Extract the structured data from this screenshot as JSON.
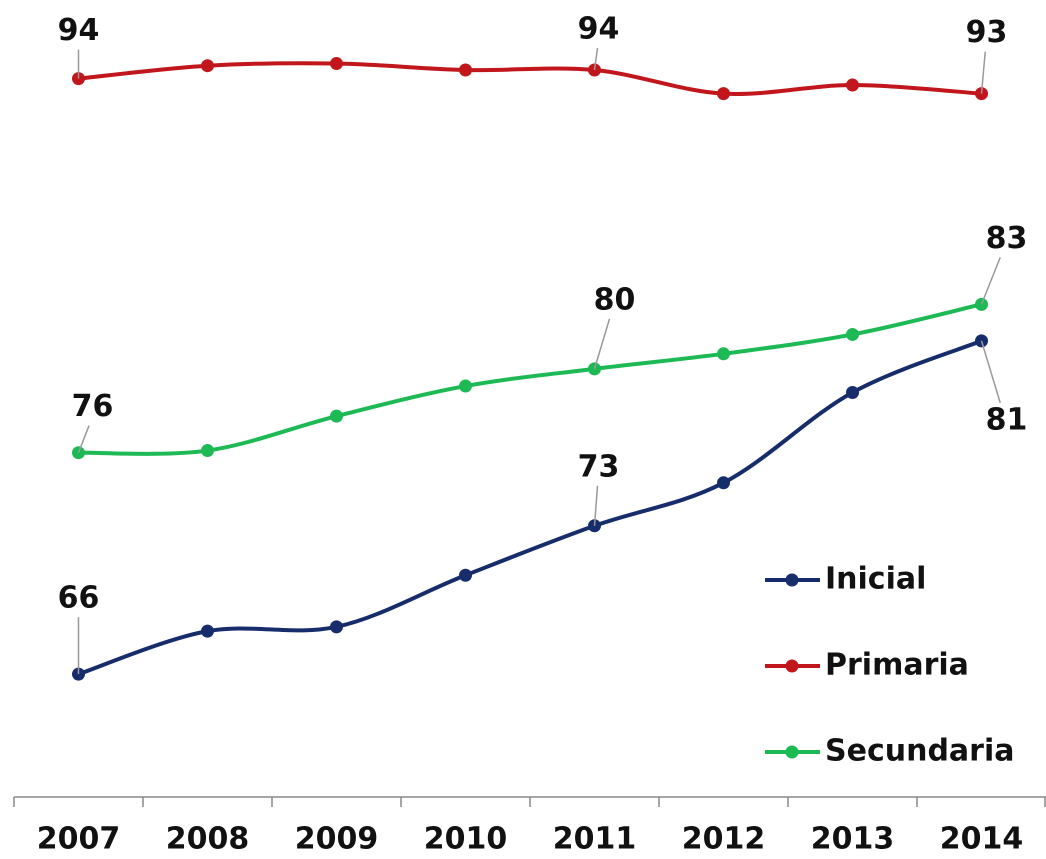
{
  "chart_data": {
    "type": "line",
    "categories": [
      "2007",
      "2008",
      "2009",
      "2010",
      "2011",
      "2012",
      "2013",
      "2014"
    ],
    "series": [
      {
        "name": "Inicial",
        "color": "#172c6b",
        "values": [
          65.9,
          67.9,
          68.1,
          70.5,
          72.8,
          74.8,
          79.0,
          81.4
        ],
        "value_labels": [
          "66",
          null,
          null,
          null,
          "73",
          null,
          null,
          "81"
        ]
      },
      {
        "name": "Primaria",
        "color": "#c0161c",
        "values": [
          93.6,
          94.2,
          94.3,
          94.0,
          94.0,
          92.9,
          93.3,
          92.9
        ],
        "value_labels": [
          "94",
          null,
          null,
          null,
          "94",
          null,
          null,
          "93"
        ]
      },
      {
        "name": "Secundaria",
        "color": "#1db954",
        "values": [
          76.2,
          76.3,
          77.9,
          79.3,
          80.1,
          80.8,
          81.7,
          83.1
        ],
        "value_labels": [
          "76",
          null,
          null,
          null,
          "80",
          null,
          null,
          "83"
        ]
      }
    ],
    "ylim": [
      62,
      96
    ],
    "legend": "lower right"
  }
}
